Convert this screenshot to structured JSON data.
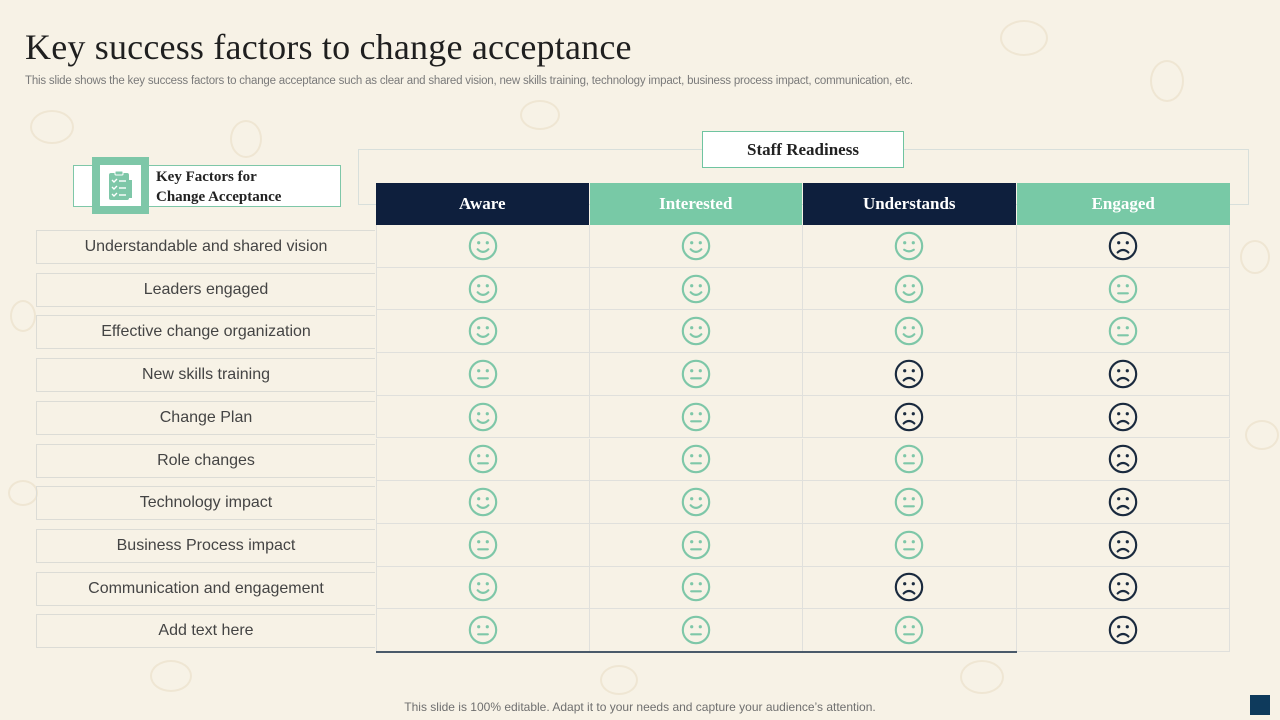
{
  "title": "Key success factors to change acceptance",
  "subtitle": "This slide shows the key success factors to change acceptance such as clear and shared vision, new skills training, technology impact, business process impact, communication, etc.",
  "staff_readiness_label": "Staff Readiness",
  "key_factors_label": "Key Factors for\nChange Acceptance",
  "key_factors_icon": "checklist-icon",
  "columns": [
    {
      "label": "Aware",
      "style": "dark"
    },
    {
      "label": "Interested",
      "style": "teal"
    },
    {
      "label": "Understands",
      "style": "dark"
    },
    {
      "label": "Engaged",
      "style": "teal"
    }
  ],
  "rows": [
    {
      "label": "Understandable and shared vision",
      "faces": [
        "happy",
        "happy",
        "neutral-happy",
        "sad"
      ]
    },
    {
      "label": "Leaders engaged",
      "faces": [
        "happy",
        "happy",
        "happy",
        "neutral"
      ]
    },
    {
      "label": "Effective change organization",
      "faces": [
        "happy",
        "happy",
        "happy",
        "neutral"
      ]
    },
    {
      "label": "New skills training",
      "faces": [
        "neutral",
        "neutral",
        "sad",
        "sad"
      ]
    },
    {
      "label": "Change Plan",
      "faces": [
        "happy",
        "neutral",
        "sad",
        "sad"
      ]
    },
    {
      "label": "Role changes",
      "faces": [
        "neutral",
        "neutral",
        "neutral",
        "sad"
      ]
    },
    {
      "label": "Technology  impact",
      "faces": [
        "happy",
        "happy",
        "neutral",
        "sad"
      ]
    },
    {
      "label": "Business Process impact",
      "faces": [
        "neutral",
        "neutral",
        "neutral",
        "sad"
      ]
    },
    {
      "label": "Communication and engagement",
      "faces": [
        "happy",
        "neutral",
        "sad",
        "sad"
      ]
    },
    {
      "label": "Add text here",
      "faces": [
        "neutral",
        "neutral",
        "neutral",
        "sad"
      ]
    }
  ],
  "colors": {
    "happy": "#7ec7a8",
    "neutral": "#7ec7a8",
    "sad": "#1a2a3e",
    "dark_header": "#0e1f3d",
    "teal_header": "#78c9a6"
  },
  "footer": "This slide is 100% editable. Adapt it to your needs and capture your audience’s attention."
}
